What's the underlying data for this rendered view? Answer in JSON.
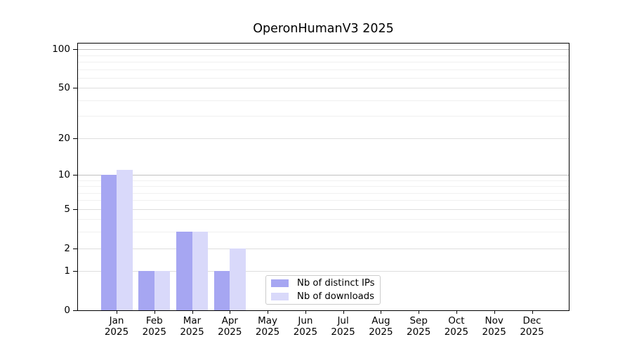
{
  "chart_data": {
    "type": "bar",
    "title": "OperonHumanV3 2025",
    "categories": [
      "Jan",
      "Feb",
      "Mar",
      "Apr",
      "May",
      "Jun",
      "Jul",
      "Aug",
      "Sep",
      "Oct",
      "Nov",
      "Dec"
    ],
    "category_year": "2025",
    "series": [
      {
        "key": "distinct-ips",
        "name": "Nb of distinct IPs",
        "color": "#a6a6f2",
        "values": [
          10,
          1,
          3,
          1,
          0,
          0,
          0,
          0,
          0,
          0,
          0,
          0
        ]
      },
      {
        "key": "downloads",
        "name": "Nb of downloads",
        "color": "#d9d9fa",
        "values": [
          11,
          1,
          3,
          2,
          0,
          0,
          0,
          0,
          0,
          0,
          0,
          0
        ]
      }
    ],
    "y_scale": "log1p",
    "y_major_ticks": [
      0,
      1,
      2,
      5,
      10,
      20,
      50,
      100
    ],
    "y_minor_gridlines": [
      3,
      4,
      6,
      7,
      8,
      9,
      30,
      40,
      60,
      70,
      80,
      90
    ],
    "ylim": [
      0,
      114
    ],
    "grid": "horizontal",
    "legend_position": "lower center"
  },
  "colors": {
    "grid_major_strong": "#c0c0c0",
    "grid_major": "#dedede",
    "grid_minor": "#f0f0f0",
    "spine": "#000000",
    "legend_border": "#cccccc"
  }
}
